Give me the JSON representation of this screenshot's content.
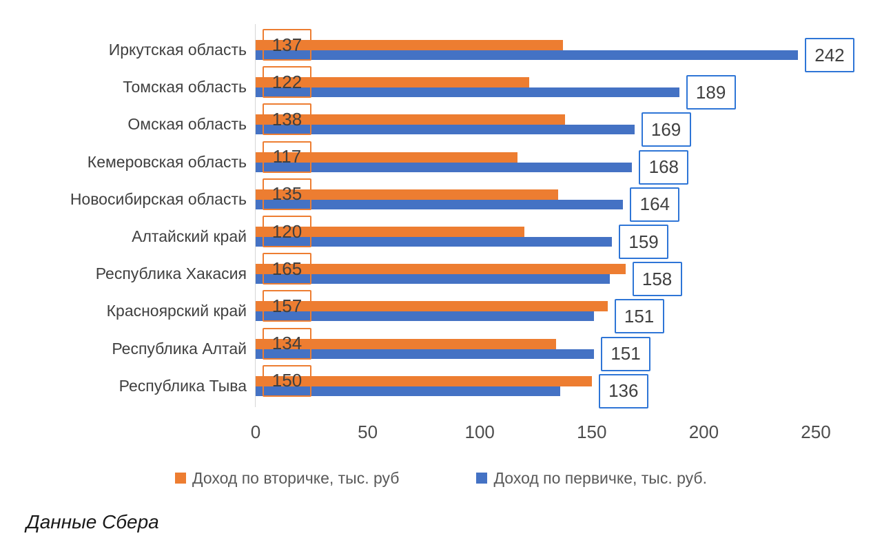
{
  "chart_data": {
    "type": "bar",
    "orientation": "horizontal",
    "title": "",
    "xlabel": "",
    "ylabel": "",
    "categories": [
      "Иркутская область",
      "Томская область",
      "Омская область",
      "Кемеровская область",
      "Новосибирская область",
      "Алтайский край",
      "Республика Хакасия",
      "Красноярский край",
      "Республика Алтай",
      "Республика Тыва"
    ],
    "series": [
      {
        "name": "Доход по вторичке, тыс. руб",
        "color": "#ED7D31",
        "values": [
          137,
          122,
          138,
          117,
          135,
          120,
          165,
          157,
          134,
          150
        ]
      },
      {
        "name": "Доход по первичке, тыс. руб.",
        "color": "#4472C4",
        "values": [
          242,
          189,
          169,
          168,
          164,
          159,
          158,
          151,
          151,
          136
        ]
      }
    ],
    "x_ticks": [
      0,
      50,
      100,
      150,
      200,
      250
    ],
    "xlim": [
      0,
      250
    ],
    "grid": false,
    "legend_position": "bottom",
    "data_labels": true
  },
  "colors": {
    "orange": "#ED7D31",
    "blue": "#4472C4",
    "orange_box_border": "#ED7D31",
    "blue_box_border": "#2E75D6",
    "axis_line": "#d6d6d6",
    "label_text": "#404040",
    "legend_text": "#595959"
  },
  "caption": "Данные Сбера"
}
